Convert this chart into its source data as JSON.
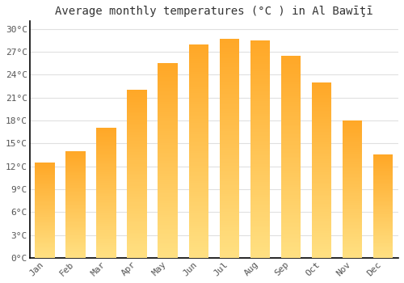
{
  "title": "Average monthly temperatures (°C ) in Al Bawīţī",
  "months": [
    "Jan",
    "Feb",
    "Mar",
    "Apr",
    "May",
    "Jun",
    "Jul",
    "Aug",
    "Sep",
    "Oct",
    "Nov",
    "Dec"
  ],
  "values": [
    12.5,
    14.0,
    17.0,
    22.0,
    25.5,
    28.0,
    28.7,
    28.5,
    26.5,
    23.0,
    18.0,
    13.5
  ],
  "bar_color_top": "#FFA726",
  "bar_color_bottom": "#FFE082",
  "yticks": [
    0,
    3,
    6,
    9,
    12,
    15,
    18,
    21,
    24,
    27,
    30
  ],
  "ylim": [
    0,
    31
  ],
  "background_color": "#ffffff",
  "grid_color": "#e0e0e0",
  "title_fontsize": 10,
  "tick_fontsize": 8,
  "bar_width": 0.65
}
